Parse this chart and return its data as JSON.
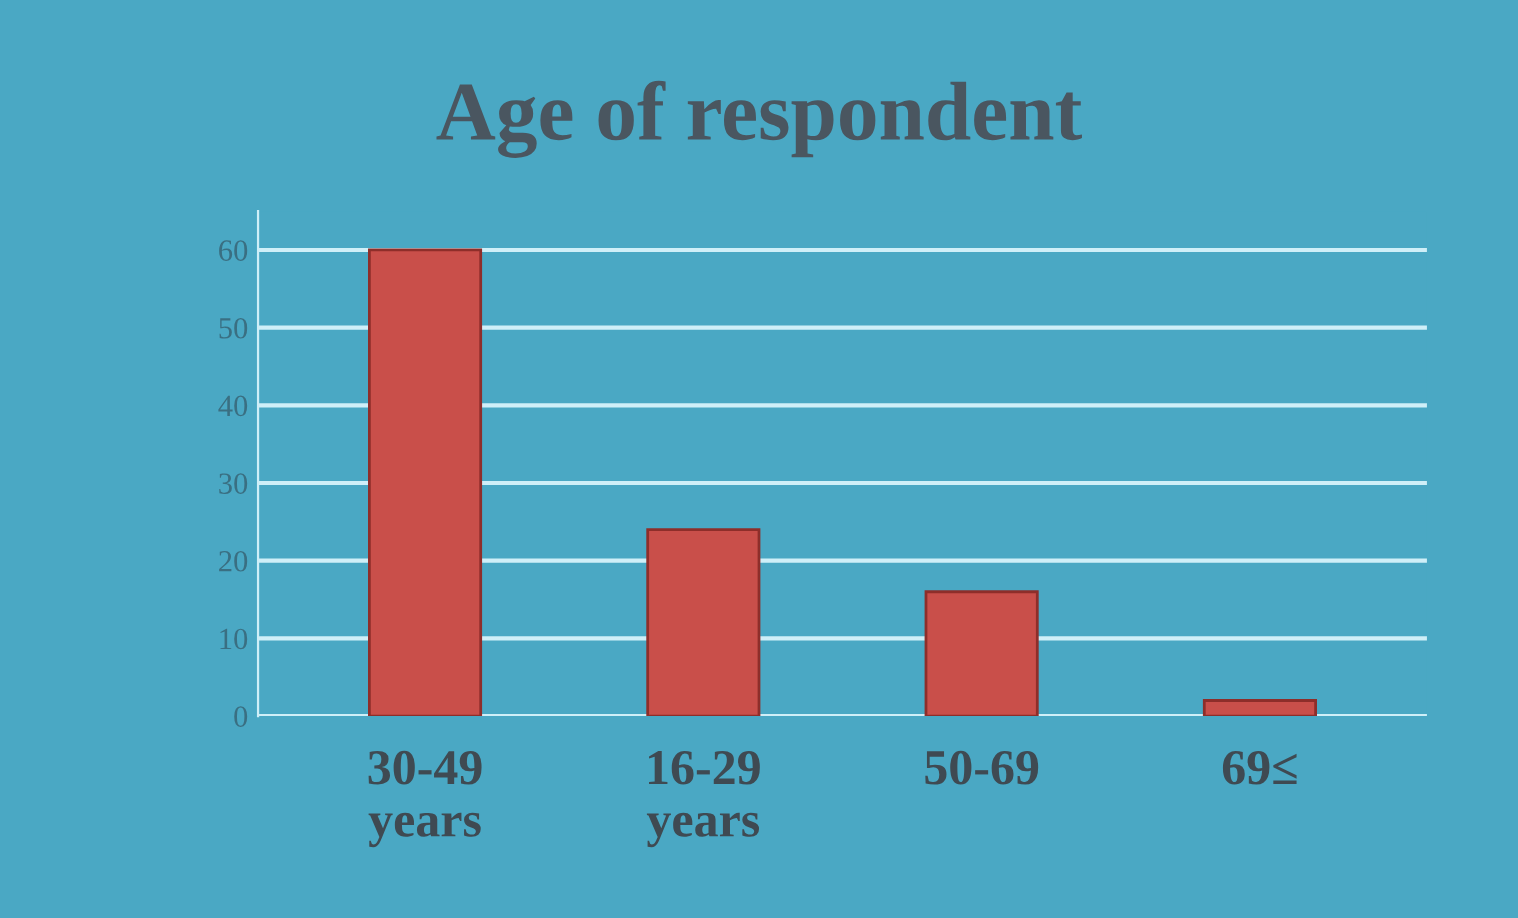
{
  "chart_data": {
    "type": "bar",
    "title": "Age of respondent",
    "categories": [
      "30-49\nyears",
      "16-29\nyears",
      "50-69",
      "69≤"
    ],
    "values": [
      60,
      24,
      16,
      2
    ],
    "color": "#c94f4a",
    "ylim": [
      0,
      65
    ],
    "yticks": [
      0,
      10,
      20,
      30,
      40,
      50,
      60
    ],
    "grid": "y"
  }
}
